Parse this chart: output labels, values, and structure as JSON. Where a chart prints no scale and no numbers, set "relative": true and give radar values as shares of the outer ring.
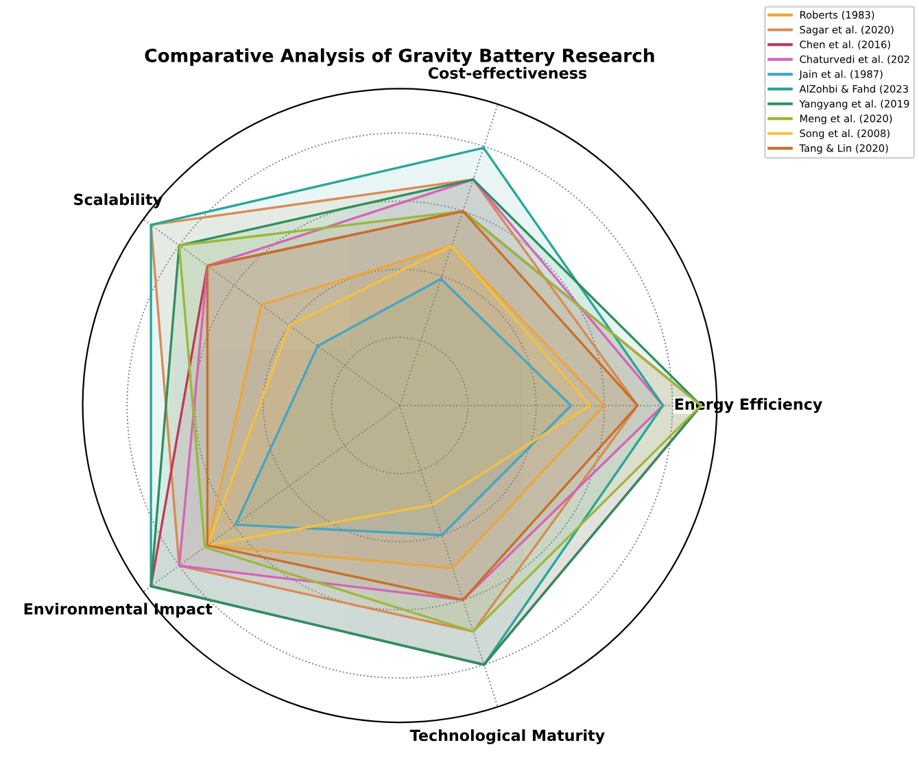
{
  "chart_data": {
    "type": "radar",
    "title": "Comparative Analysis of Gravity Battery Research",
    "relative": true,
    "grid": true,
    "legend": "top right",
    "line_style": "solid",
    "marker": "none",
    "categories": [
      "Cost-effectiveness",
      "Energy Efficiency",
      "Technological Maturity",
      "Environmental Impact",
      "Scalability"
    ],
    "series": [
      {
        "name": "Roberts (1983)",
        "color": "#eda53a",
        "values": [
          0.53,
          0.645,
          0.54,
          0.75,
          0.54
        ]
      },
      {
        "name": "Sagar et al. (2020)",
        "color": "#d98a55",
        "values": [
          0.75,
          0.75,
          0.75,
          0.86,
          0.97
        ]
      },
      {
        "name": "Chen et al. (2016)",
        "color": "#c0395a",
        "values": [
          0.645,
          0.95,
          0.86,
          0.97,
          0.75
        ]
      },
      {
        "name": "Chaturvedi et al. (202",
        "color": "#d564b8",
        "values": [
          0.75,
          0.83,
          0.645,
          0.86,
          0.75
        ]
      },
      {
        "name": "Jain et al. (1987)",
        "color": "#45a5c4",
        "values": [
          0.42,
          0.54,
          0.43,
          0.64,
          0.32
        ]
      },
      {
        "name": "AlZohbi & Fahd (2023",
        "color": "#2aa69a",
        "values": [
          0.855,
          0.83,
          0.86,
          0.97,
          0.97
        ]
      },
      {
        "name": "Yangyang et al. (2019",
        "color": "#2f8f5e",
        "values": [
          0.75,
          0.95,
          0.86,
          0.97,
          0.86
        ]
      },
      {
        "name": "Meng et al. (2020)",
        "color": "#9bb83a",
        "values": [
          0.645,
          0.95,
          0.75,
          0.76,
          0.86
        ]
      },
      {
        "name": "Song et al. (2008)",
        "color": "#f2c23e",
        "values": [
          0.53,
          0.6,
          0.33,
          0.75,
          0.43
        ]
      },
      {
        "name": "Tang & Lin (2020)",
        "color": "#c8702a",
        "values": [
          0.645,
          0.75,
          0.645,
          0.75,
          0.75
        ]
      }
    ]
  }
}
